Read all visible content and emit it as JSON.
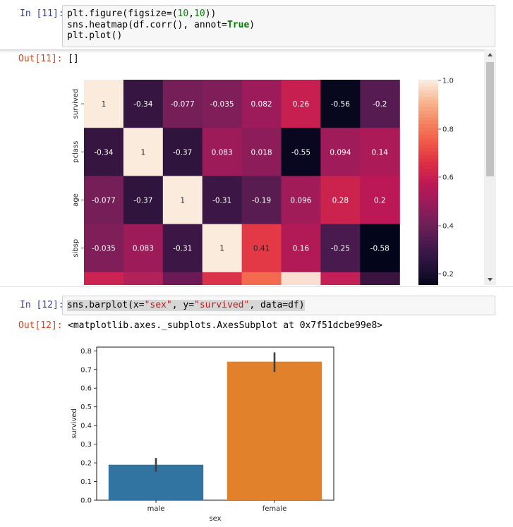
{
  "cell11": {
    "in_prompt": "In [11]:",
    "code_lines": [
      [
        {
          "t": "plt.figure(figsize=("
        },
        {
          "t": "10",
          "c": "num"
        },
        {
          "t": ","
        },
        {
          "t": "10",
          "c": "num"
        },
        {
          "t": "))"
        }
      ],
      [
        {
          "t": "sns.heatmap(df.corr(), annot="
        },
        {
          "t": "True",
          "c": "kw"
        },
        {
          "t": ")"
        }
      ],
      [
        {
          "t": "plt.plot()"
        }
      ]
    ],
    "out_prompt": "Out[11]:",
    "output_text": "[]"
  },
  "heatmap": {
    "row_labels": [
      "survived",
      "pclass",
      "age",
      "sibsp"
    ],
    "values": [
      [
        "1",
        "-0.34",
        "-0.077",
        "-0.035",
        "0.082",
        "0.26",
        "-0.56",
        "-0.2"
      ],
      [
        "-0.34",
        "1",
        "-0.37",
        "0.083",
        "0.018",
        "-0.55",
        "0.094",
        "0.14"
      ],
      [
        "-0.077",
        "-0.37",
        "1",
        "-0.31",
        "-0.19",
        "0.096",
        "0.28",
        "0.2"
      ],
      [
        "-0.035",
        "0.083",
        "-0.31",
        "1",
        "0.41",
        "0.16",
        "-0.25",
        "-0.58"
      ]
    ],
    "partial_row_colors": [
      "#cc2353",
      "#b2225a",
      "#6b1a55",
      "#da3349",
      "#f46a4e",
      "#fbe0d2",
      "#c42058",
      "#3a143f",
      "#a51f5b"
    ],
    "colorbar_ticks": [
      "1.0",
      "0.8",
      "0.6",
      "0.4",
      "0.2"
    ]
  },
  "cell12": {
    "in_prompt": "In [12]:",
    "code_parts": [
      {
        "t": "sns.barplot(x="
      },
      {
        "t": "\"sex\"",
        "c": "str"
      },
      {
        "t": ", y="
      },
      {
        "t": "\"survived\"",
        "c": "str"
      },
      {
        "t": ", data=df)"
      }
    ],
    "out_prompt": "Out[12]:",
    "output_text": "<matplotlib.axes._subplots.AxesSubplot at 0x7f51dcbe99e8>"
  },
  "chart_data": {
    "type": "bar",
    "categories": [
      "male",
      "female"
    ],
    "values": [
      0.19,
      0.742
    ],
    "error_bars": [
      [
        0.152,
        0.226
      ],
      [
        0.687,
        0.792
      ]
    ],
    "colors": [
      "#3274a1",
      "#e1812c"
    ],
    "xlabel": "sex",
    "ylabel": "survived",
    "ylim": [
      0,
      0.82
    ],
    "yticks": [
      "0.0",
      "0.1",
      "0.2",
      "0.3",
      "0.4",
      "0.5",
      "0.6",
      "0.7",
      "0.8"
    ],
    "yticks_values": [
      0,
      0.1,
      0.2,
      0.3,
      0.4,
      0.5,
      0.6,
      0.7,
      0.8
    ],
    "grid": false
  }
}
